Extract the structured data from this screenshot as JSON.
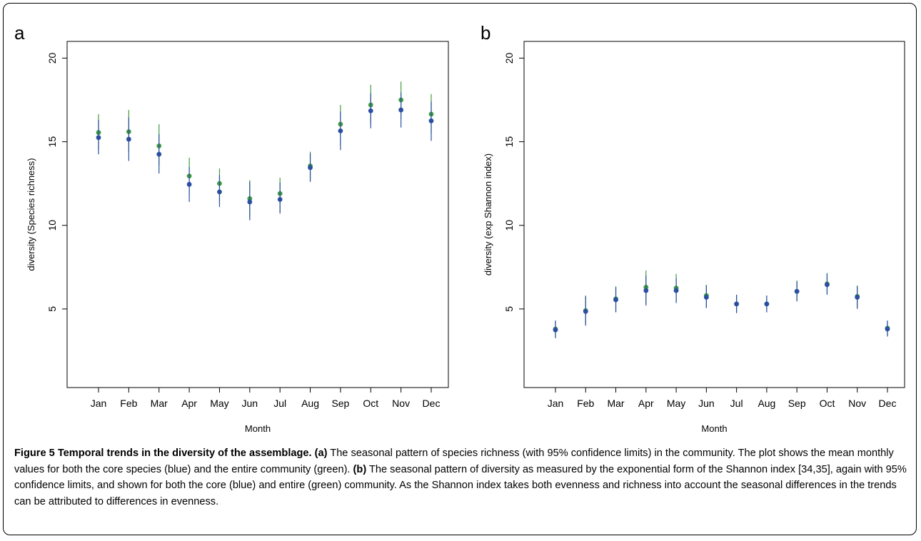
{
  "colors": {
    "core": "#2b4ea2",
    "entire": "#3f9c3f",
    "axis": "#000000"
  },
  "chart_data": [
    {
      "panel_label": "a",
      "type": "scatter",
      "xlabel": "Month",
      "ylabel": "diversity (Species richness)",
      "categories": [
        "Jan",
        "Feb",
        "Mar",
        "Apr",
        "May",
        "Jun",
        "Jul",
        "Aug",
        "Sep",
        "Oct",
        "Nov",
        "Dec"
      ],
      "yticks": [
        5,
        10,
        15,
        20
      ],
      "ylim": [
        0.3,
        21.0
      ],
      "series": [
        {
          "key": "entire",
          "color": "#3f9c3f",
          "values": [
            15.55,
            15.6,
            14.75,
            12.95,
            12.5,
            11.6,
            11.9,
            13.55,
            16.05,
            17.2,
            17.5,
            16.65
          ],
          "lower": [
            14.5,
            14.4,
            13.6,
            11.85,
            11.4,
            10.5,
            10.8,
            12.7,
            14.8,
            16.1,
            16.4,
            15.5
          ],
          "upper": [
            16.65,
            16.9,
            16.05,
            14.05,
            13.4,
            12.7,
            12.85,
            14.4,
            17.2,
            18.4,
            18.6,
            17.85
          ]
        },
        {
          "key": "core",
          "color": "#2b4ea2",
          "values": [
            15.25,
            15.15,
            14.25,
            12.45,
            12.0,
            11.4,
            11.55,
            13.45,
            15.65,
            16.85,
            16.9,
            16.25
          ],
          "lower": [
            14.25,
            13.85,
            13.1,
            11.4,
            11.1,
            10.3,
            10.7,
            12.6,
            14.5,
            15.8,
            15.85,
            15.05
          ],
          "upper": [
            16.3,
            16.45,
            15.45,
            13.5,
            13.0,
            12.6,
            12.55,
            14.3,
            16.8,
            17.9,
            17.95,
            17.4
          ]
        }
      ]
    },
    {
      "panel_label": "b",
      "type": "scatter",
      "xlabel": "Month",
      "ylabel": "diversity (exp Shannon index)",
      "categories": [
        "Jan",
        "Feb",
        "Mar",
        "Apr",
        "May",
        "Jun",
        "Jul",
        "Aug",
        "Sep",
        "Oct",
        "Nov",
        "Dec"
      ],
      "yticks": [
        5,
        10,
        15,
        20
      ],
      "ylim": [
        0.3,
        21.0
      ],
      "series": [
        {
          "key": "entire",
          "color": "#3f9c3f",
          "values": [
            3.8,
            4.9,
            5.6,
            6.3,
            6.25,
            5.8,
            5.3,
            5.3,
            6.05,
            6.5,
            5.75,
            3.85
          ],
          "lower": [
            3.3,
            4.1,
            4.85,
            5.3,
            5.45,
            5.1,
            4.8,
            4.85,
            5.5,
            5.9,
            5.1,
            3.4
          ],
          "upper": [
            4.3,
            5.8,
            6.35,
            7.3,
            7.1,
            6.45,
            5.85,
            5.8,
            6.7,
            7.15,
            6.4,
            4.3
          ]
        },
        {
          "key": "core",
          "color": "#2b4ea2",
          "values": [
            3.75,
            4.85,
            5.55,
            6.1,
            6.1,
            5.7,
            5.3,
            5.3,
            6.05,
            6.45,
            5.7,
            3.8
          ],
          "lower": [
            3.25,
            4.0,
            4.8,
            5.2,
            5.35,
            5.05,
            4.75,
            4.8,
            5.45,
            5.85,
            5.0,
            3.35
          ],
          "upper": [
            4.3,
            5.75,
            6.3,
            7.0,
            6.85,
            6.4,
            5.85,
            5.8,
            6.65,
            7.1,
            6.35,
            4.3
          ]
        }
      ]
    }
  ],
  "caption": {
    "figure_label": "Figure 5 Temporal trends in the diversity of the assemblage.",
    "part_a_label": "(a)",
    "part_a_text": " The seasonal pattern of species richness (with 95% confidence limits) in the community. The plot shows the mean monthly values for both the core species (blue) and the entire community (green). ",
    "part_b_label": "(b)",
    "part_b_text": " The seasonal pattern of diversity as measured by the exponential form of the Shannon index [34,35], again with 95% confidence limits, and shown for both the core (blue) and entire (green) community. As the Shannon index takes both evenness and richness into account the seasonal differences in the trends can be attributed to differences in evenness."
  }
}
